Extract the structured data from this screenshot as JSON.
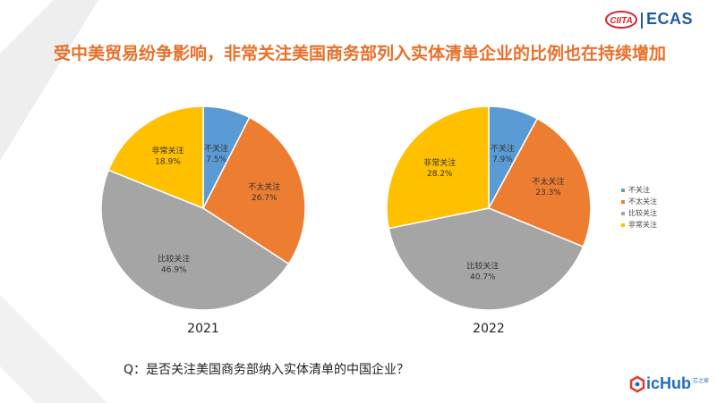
{
  "brand": {
    "logo_left": "CIITA",
    "logo_right": "ECAS",
    "footer_brand": "icHub",
    "footer_small": "芯之家"
  },
  "title": "受中美贸易纷争影响，非常关注美国商务部列入实体清单企业的比例也在持续增加",
  "question": "Q：是否关注美国商务部纳入实体清单的中国企业？",
  "colors": {
    "title": "#e8702a",
    "brand_blue": "#1f5aa8",
    "series": [
      "#5b9bd5",
      "#ed7d31",
      "#a5a5a5",
      "#ffc000"
    ]
  },
  "chart_data": [
    {
      "type": "pie",
      "title": "2021",
      "labels": [
        "不关注",
        "不太关注",
        "比较关注",
        "非常关注"
      ],
      "values": [
        7.5,
        26.7,
        46.9,
        18.9
      ],
      "value_labels": [
        "7.5%",
        "26.7%",
        "46.9%",
        "18.9%"
      ],
      "legend": "right"
    },
    {
      "type": "pie",
      "title": "2022",
      "labels": [
        "不关注",
        "不太关注",
        "比较关注",
        "非常关注"
      ],
      "values": [
        7.9,
        23.3,
        40.7,
        28.2
      ],
      "value_labels": [
        "7.9%",
        "23.3%",
        "40.7%",
        "28.2%"
      ],
      "legend": "right"
    }
  ],
  "legend_items": [
    "不关注",
    "不太关注",
    "比较关注",
    "非常关注"
  ]
}
